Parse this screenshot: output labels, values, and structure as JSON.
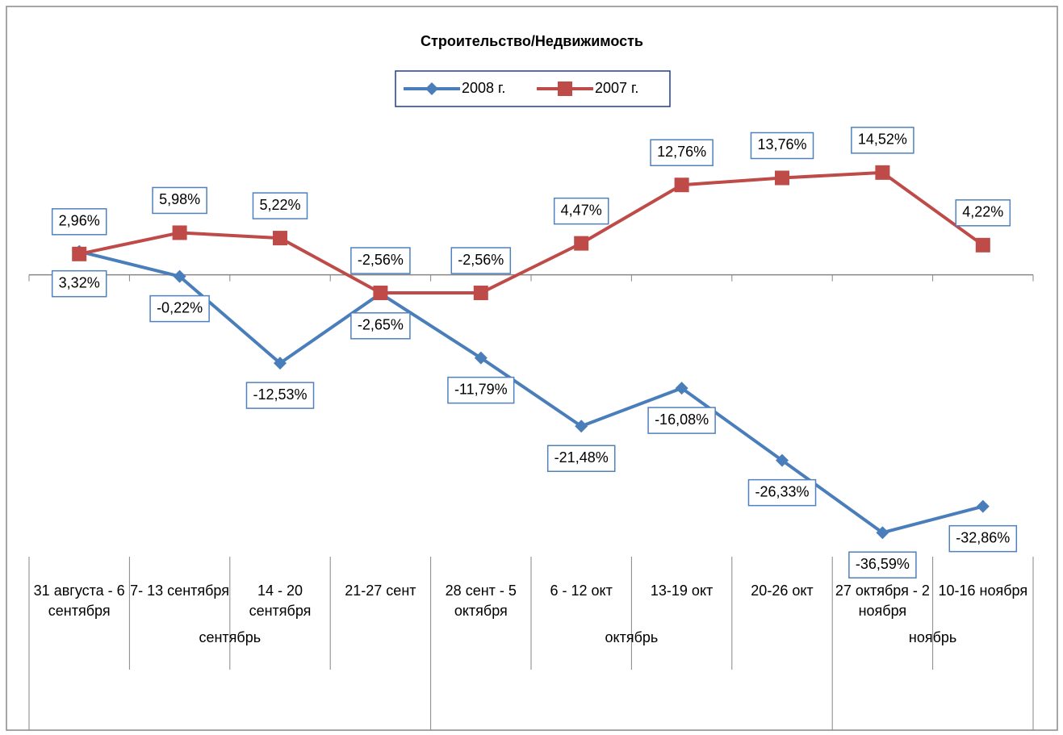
{
  "chart_data": {
    "type": "line",
    "title": "Строительство/Недвижимость",
    "groups": [
      {
        "name": "сентябрь",
        "categories": [
          "31 августа - 6 сентября",
          "7- 13 сентября",
          "14 - 20 сентября",
          "21-27 сент"
        ]
      },
      {
        "name": "октябрь",
        "categories": [
          "28 сент - 5 октября",
          "6 - 12 окт",
          "13-19 окт",
          "20-26 окт"
        ]
      },
      {
        "name": "ноябрь",
        "categories": [
          "27 октября - 2 ноября",
          "10-16 ноября"
        ]
      }
    ],
    "series": [
      {
        "name": "2008 г.",
        "color": "#4a7ebb",
        "marker": "diamond",
        "values": [
          3.32,
          -0.22,
          -12.53,
          -2.65,
          -11.79,
          -21.48,
          -16.08,
          -26.33,
          -36.59,
          -32.86
        ],
        "value_labels": [
          "3,32%",
          "-0,22%",
          "-12,53%",
          "-2,65%",
          "-11,79%",
          "-21,48%",
          "-16,08%",
          "-26,33%",
          "-36,59%",
          "-32,86%"
        ]
      },
      {
        "name": "2007 г.",
        "color": "#be4b48",
        "marker": "square",
        "values": [
          2.96,
          5.98,
          5.22,
          -2.56,
          -2.56,
          4.47,
          12.76,
          13.76,
          14.52,
          4.22
        ],
        "value_labels": [
          "2,96%",
          "5,98%",
          "5,22%",
          "-2,56%",
          "-2,56%",
          "4,47%",
          "12,76%",
          "13,76%",
          "14,52%",
          "4,22%"
        ]
      }
    ],
    "ylim": [
      -40,
      20
    ]
  }
}
